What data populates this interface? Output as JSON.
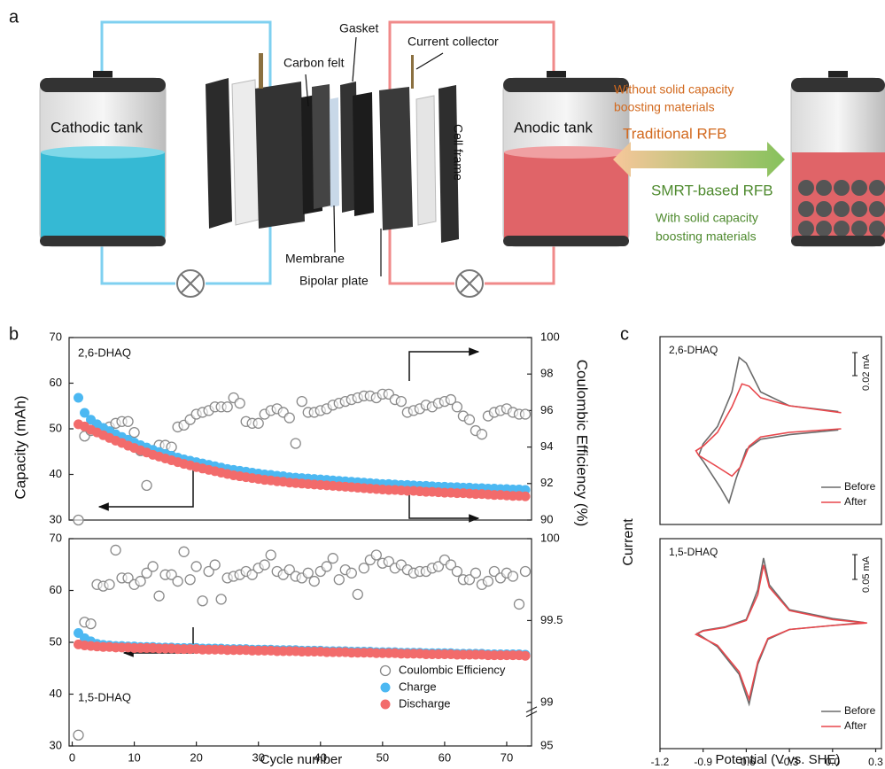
{
  "panel_labels": [
    "a",
    "b",
    "c"
  ],
  "diagram": {
    "cathodic_tank": "Cathodic tank",
    "anodic_tank": "Anodic tank",
    "gasket": "Gasket",
    "current_collector": "Current collector",
    "carbon_felt": "Carbon felt",
    "cell_frame": "Cell frame",
    "membrane": "Membrane",
    "bipolar_plate": "Bipolar plate",
    "without_note": [
      "Without solid capacity",
      "boosting materials"
    ],
    "traditional": "Traditional RFB",
    "smrt": "SMRT-based RFB",
    "with_note": [
      "With solid capacity",
      "boosting materials"
    ]
  },
  "chart_data": [
    {
      "type": "scatter",
      "label": "2,6-DHAQ",
      "ylabel": "Capacity (mAh)",
      "y2label": "Coulombic Efficiency (%)",
      "xlim": [
        -0.5,
        74
      ],
      "ylim": [
        30,
        70
      ],
      "yticks": [
        30,
        40,
        50,
        60,
        70
      ],
      "y2lim": [
        90,
        100
      ],
      "y2ticks": [
        90,
        92,
        94,
        96,
        98,
        100
      ],
      "x": [
        1,
        2,
        3,
        4,
        5,
        6,
        7,
        8,
        9,
        10,
        11,
        12,
        13,
        14,
        15,
        16,
        17,
        18,
        19,
        20,
        21,
        22,
        23,
        24,
        25,
        26,
        27,
        28,
        29,
        30,
        31,
        32,
        33,
        34,
        35,
        36,
        37,
        38,
        39,
        40,
        41,
        42,
        43,
        44,
        45,
        46,
        47,
        48,
        49,
        50,
        51,
        52,
        53,
        54,
        55,
        56,
        57,
        58,
        59,
        60,
        61,
        62,
        63,
        64,
        65,
        66,
        67,
        68,
        69,
        70,
        71,
        72,
        73
      ],
      "series": [
        {
          "color": "#8a8a8a",
          "marker": "open",
          "axis": "y2",
          "values": [
            90.0,
            94.6,
            94.9,
            95.1,
            95.0,
            95.1,
            95.3,
            95.4,
            95.4,
            94.8,
            93.8,
            91.9,
            93.7,
            94.1,
            94.1,
            94.0,
            95.1,
            95.2,
            95.5,
            95.8,
            95.9,
            96.0,
            96.2,
            96.2,
            96.2,
            96.7,
            96.4,
            95.4,
            95.3,
            95.3,
            95.8,
            96.0,
            96.1,
            95.9,
            95.6,
            94.2,
            96.5,
            95.9,
            95.9,
            96.0,
            96.1,
            96.3,
            96.4,
            96.5,
            96.6,
            96.7,
            96.8,
            96.8,
            96.7,
            96.9,
            96.9,
            96.6,
            96.5,
            95.9,
            96.0,
            96.1,
            96.3,
            96.2,
            96.4,
            96.5,
            96.6,
            96.2,
            95.7,
            95.5,
            94.9,
            94.7,
            95.7,
            95.9,
            96.0,
            96.1,
            95.9,
            95.8,
            95.8
          ]
        },
        {
          "color": "#4cb8f2",
          "marker": "filled",
          "values": [
            56.8,
            53.5,
            52.0,
            51.0,
            50.2,
            49.5,
            48.8,
            48.2,
            47.6,
            47.0,
            46.4,
            45.9,
            45.4,
            44.9,
            44.5,
            44.1,
            43.7,
            43.3,
            43.0,
            42.7,
            42.4,
            42.1,
            41.8,
            41.5,
            41.2,
            41.0,
            40.8,
            40.6,
            40.4,
            40.2,
            40.0,
            39.9,
            39.7,
            39.6,
            39.4,
            39.3,
            39.2,
            39.1,
            39.0,
            38.9,
            38.8,
            38.7,
            38.6,
            38.5,
            38.4,
            38.3,
            38.2,
            38.1,
            38.0,
            37.9,
            37.9,
            37.8,
            37.7,
            37.7,
            37.6,
            37.5,
            37.5,
            37.4,
            37.3,
            37.3,
            37.2,
            37.2,
            37.1,
            37.1,
            37.0,
            37.0,
            36.9,
            36.9,
            36.8,
            36.8,
            36.7,
            36.7,
            36.6
          ]
        },
        {
          "color": "#f26b6b",
          "marker": "filled",
          "values": [
            51.0,
            50.5,
            49.8,
            49.2,
            48.6,
            48.0,
            47.4,
            46.9,
            46.3,
            45.8,
            45.3,
            44.8,
            44.3,
            43.9,
            43.5,
            43.1,
            42.7,
            42.3,
            42.0,
            41.6,
            41.3,
            41.0,
            40.7,
            40.4,
            40.1,
            39.8,
            39.6,
            39.4,
            39.2,
            39.0,
            38.8,
            38.7,
            38.5,
            38.4,
            38.2,
            38.1,
            38.0,
            37.9,
            37.8,
            37.7,
            37.6,
            37.5,
            37.4,
            37.3,
            37.2,
            37.1,
            37.0,
            36.9,
            36.8,
            36.7,
            36.6,
            36.6,
            36.5,
            36.4,
            36.4,
            36.3,
            36.2,
            36.2,
            36.1,
            36.0,
            36.0,
            35.9,
            35.9,
            35.8,
            35.7,
            35.7,
            35.6,
            35.5,
            35.5,
            35.4,
            35.3,
            35.3,
            35.2
          ]
        }
      ]
    },
    {
      "type": "scatter",
      "label": "1,5-DHAQ",
      "xlabel": "Cycle number",
      "xlim": [
        -0.5,
        74
      ],
      "xticks": [
        0,
        10,
        20,
        30,
        40,
        50,
        60,
        70
      ],
      "ylim": [
        30,
        70
      ],
      "yticks": [
        30,
        40,
        50,
        60,
        70
      ],
      "y2lim": [
        95,
        100
      ],
      "y2_break": 99,
      "y2ticks": [
        95,
        99,
        99.5,
        100
      ],
      "legend": "lower right",
      "x": [
        1,
        2,
        3,
        4,
        5,
        6,
        7,
        8,
        9,
        10,
        11,
        12,
        13,
        14,
        15,
        16,
        17,
        18,
        19,
        20,
        21,
        22,
        23,
        24,
        25,
        26,
        27,
        28,
        29,
        30,
        31,
        32,
        33,
        34,
        35,
        36,
        37,
        38,
        39,
        40,
        41,
        42,
        43,
        44,
        45,
        46,
        47,
        48,
        49,
        50,
        51,
        52,
        53,
        54,
        55,
        56,
        57,
        58,
        59,
        60,
        61,
        62,
        63,
        64,
        65,
        66,
        67,
        68,
        69,
        70,
        71,
        72,
        73
      ],
      "series": [
        {
          "name": "Coulombic Efficiency",
          "color": "#8a8a8a",
          "marker": "open",
          "axis": "y2",
          "values": [
            96.0,
            99.49,
            99.48,
            99.72,
            99.71,
            99.72,
            99.93,
            99.76,
            99.76,
            99.72,
            99.74,
            99.79,
            99.83,
            99.65,
            99.78,
            99.78,
            99.74,
            99.92,
            99.75,
            99.83,
            99.62,
            99.8,
            99.84,
            99.63,
            99.76,
            99.77,
            99.78,
            99.8,
            99.78,
            99.82,
            99.84,
            99.9,
            99.8,
            99.78,
            99.81,
            99.77,
            99.76,
            99.79,
            99.74,
            99.8,
            99.83,
            99.88,
            99.75,
            99.81,
            99.79,
            99.66,
            99.82,
            99.87,
            99.9,
            99.85,
            99.86,
            99.82,
            99.84,
            99.81,
            99.79,
            99.8,
            99.8,
            99.82,
            99.83,
            99.87,
            99.84,
            99.8,
            99.75,
            99.75,
            99.79,
            99.72,
            99.74,
            99.8,
            99.76,
            99.79,
            99.77,
            99.6,
            99.8
          ]
        },
        {
          "name": "Charge",
          "color": "#4cb8f2",
          "marker": "filled",
          "values": [
            51.8,
            50.8,
            50.2,
            49.7,
            49.5,
            49.4,
            49.3,
            49.3,
            49.2,
            49.2,
            49.1,
            49.1,
            49.1,
            49.0,
            49.0,
            49.0,
            48.9,
            48.9,
            48.9,
            48.9,
            48.8,
            48.8,
            48.8,
            48.8,
            48.7,
            48.7,
            48.7,
            48.7,
            48.6,
            48.6,
            48.6,
            48.6,
            48.5,
            48.5,
            48.5,
            48.5,
            48.4,
            48.4,
            48.4,
            48.4,
            48.3,
            48.3,
            48.3,
            48.3,
            48.2,
            48.2,
            48.2,
            48.2,
            48.1,
            48.1,
            48.1,
            48.1,
            48.0,
            48.0,
            48.0,
            48.0,
            47.9,
            47.9,
            47.9,
            47.9,
            47.9,
            47.8,
            47.8,
            47.8,
            47.8,
            47.8,
            47.7,
            47.7,
            47.7,
            47.7,
            47.7,
            47.7,
            47.6
          ]
        },
        {
          "name": "Discharge",
          "color": "#f26b6b",
          "marker": "filled",
          "values": [
            49.6,
            49.4,
            49.3,
            49.2,
            49.1,
            49.1,
            49.0,
            49.0,
            49.0,
            48.9,
            48.9,
            48.9,
            48.9,
            48.8,
            48.8,
            48.8,
            48.7,
            48.7,
            48.7,
            48.7,
            48.6,
            48.6,
            48.6,
            48.6,
            48.5,
            48.5,
            48.5,
            48.5,
            48.4,
            48.4,
            48.4,
            48.4,
            48.3,
            48.3,
            48.3,
            48.3,
            48.2,
            48.2,
            48.2,
            48.2,
            48.1,
            48.1,
            48.1,
            48.1,
            48.0,
            48.0,
            48.0,
            48.0,
            47.9,
            47.9,
            47.9,
            47.9,
            47.8,
            47.8,
            47.8,
            47.8,
            47.7,
            47.7,
            47.7,
            47.7,
            47.7,
            47.6,
            47.6,
            47.6,
            47.6,
            47.6,
            47.5,
            47.5,
            47.5,
            47.5,
            47.5,
            47.5,
            47.4
          ]
        }
      ]
    },
    {
      "type": "line",
      "label": "2,6-DHAQ",
      "ylabel": "Current",
      "xlim": [
        -1.2,
        0.34
      ],
      "ylim": [
        -0.09,
        0.073
      ],
      "scale_bar": {
        "value": 0.02,
        "label": "0.02 mA"
      },
      "legend": "lower right",
      "series": [
        {
          "name": "Before",
          "color": "#6b6b6b",
          "x": [
            0.04,
            -0.3,
            -0.5,
            -0.6,
            -0.67,
            -0.72,
            -0.78,
            -0.9,
            -0.93,
            -0.9,
            -0.8,
            -0.7,
            -0.65,
            -0.6,
            -0.5,
            -0.3,
            0.04
          ],
          "values": [
            -0.008,
            -0.012,
            -0.016,
            -0.025,
            -0.05,
            -0.071,
            -0.058,
            -0.035,
            -0.03,
            -0.02,
            -0.005,
            0.025,
            0.055,
            0.05,
            0.025,
            0.013,
            0.008
          ]
        },
        {
          "name": "After",
          "color": "#e8474c",
          "x": [
            0.06,
            -0.3,
            -0.5,
            -0.58,
            -0.64,
            -0.7,
            -0.8,
            -0.93,
            -0.95,
            -0.9,
            -0.8,
            -0.7,
            -0.63,
            -0.58,
            -0.5,
            -0.3,
            0.06
          ],
          "values": [
            -0.007,
            -0.01,
            -0.014,
            -0.022,
            -0.04,
            -0.048,
            -0.04,
            -0.03,
            -0.026,
            -0.022,
            -0.01,
            0.012,
            0.032,
            0.03,
            0.02,
            0.013,
            0.007
          ]
        }
      ]
    },
    {
      "type": "line",
      "label": "1,5-DHAQ",
      "xlabel": "Potential (V vs. SHE)",
      "xlim": [
        -1.2,
        0.34
      ],
      "ylim": [
        -0.25,
        0.173
      ],
      "xticks": [
        -1.2,
        -0.9,
        -0.6,
        -0.3,
        {
          "value": 0,
          "label": "0.0"
        },
        0.3
      ],
      "scale_bar": {
        "value": 0.05,
        "label": "0.05 mA"
      },
      "legend": "lower right",
      "series": [
        {
          "name": "Before",
          "color": "#6b6b6b",
          "x": [
            0.22,
            0,
            -0.3,
            -0.45,
            -0.52,
            -0.58,
            -0.65,
            -0.8,
            -0.94,
            -0.9,
            -0.75,
            -0.6,
            -0.52,
            -0.48,
            -0.44,
            -0.3,
            0,
            0.22
          ],
          "values": [
            0.004,
            -0.002,
            -0.01,
            -0.03,
            -0.08,
            -0.16,
            -0.1,
            -0.045,
            -0.018,
            -0.012,
            -0.005,
            0.01,
            0.07,
            0.134,
            0.08,
            0.03,
            0.012,
            0.004
          ]
        },
        {
          "name": "After",
          "color": "#e8474c",
          "x": [
            0.24,
            0,
            -0.3,
            -0.45,
            -0.52,
            -0.58,
            -0.65,
            -0.8,
            -0.95,
            -0.9,
            -0.75,
            -0.6,
            -0.52,
            -0.48,
            -0.44,
            -0.3,
            0,
            0.24
          ],
          "values": [
            0.003,
            -0.002,
            -0.01,
            -0.028,
            -0.075,
            -0.15,
            -0.095,
            -0.042,
            -0.02,
            -0.013,
            -0.006,
            0.008,
            0.06,
            0.12,
            0.075,
            0.028,
            0.01,
            0.003
          ]
        }
      ]
    }
  ]
}
